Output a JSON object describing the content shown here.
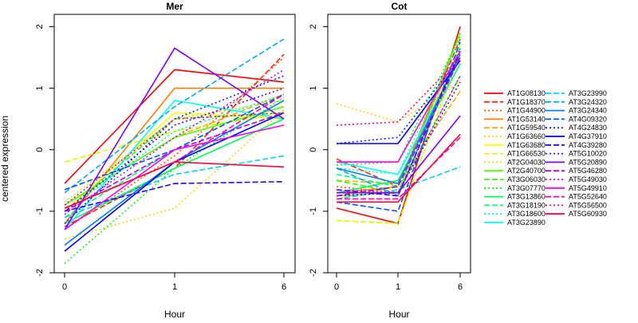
{
  "chart_data": {
    "type": "line",
    "ylabel": "centered expression",
    "x": [
      "0",
      "1",
      "6"
    ],
    "xlabel": "Hour",
    "ylim": [
      -2.0,
      2.2
    ],
    "yticks": [
      -2,
      -1,
      0,
      1,
      2
    ],
    "panels": [
      {
        "title": "Mer",
        "xlabel": "Hour",
        "series": [
          {
            "name": "AT1G08130",
            "color": "#ff0000",
            "dash": "solid",
            "values": [
              -0.55,
              1.3,
              1.1
            ]
          },
          {
            "name": "AT1G18370",
            "color": "#ff2a00",
            "dash": "dashed",
            "values": [
              -1.25,
              -0.3,
              1.55
            ]
          },
          {
            "name": "AT1G44900",
            "color": "#ff5500",
            "dash": "dotted",
            "values": [
              -1.3,
              -0.1,
              1.5
            ]
          },
          {
            "name": "AT1G53140",
            "color": "#ff8000",
            "dash": "solid",
            "values": [
              -1.2,
              1.0,
              1.0
            ]
          },
          {
            "name": "AT1G59540",
            "color": "#ffaa00",
            "dash": "dashed",
            "values": [
              -0.9,
              0.2,
              0.9
            ]
          },
          {
            "name": "AT1G63660",
            "color": "#ffd500",
            "dash": "dotted",
            "values": [
              -1.45,
              -0.95,
              0.65
            ]
          },
          {
            "name": "AT1G63680",
            "color": "#ffff00",
            "dash": "solid",
            "values": [
              -1.0,
              0.6,
              0.5
            ]
          },
          {
            "name": "AT1G66530",
            "color": "#d4ff00",
            "dash": "dashed",
            "values": [
              -0.2,
              0.3,
              0.6
            ]
          },
          {
            "name": "AT2G04030",
            "color": "#aaff00",
            "dash": "dotted",
            "values": [
              -0.85,
              0.5,
              0.8
            ]
          },
          {
            "name": "AT2G40700",
            "color": "#55ff00",
            "dash": "solid",
            "values": [
              -0.9,
              0.2,
              0.7
            ]
          },
          {
            "name": "AT3G06030",
            "color": "#2aff00",
            "dash": "dashed",
            "values": [
              -1.0,
              0.5,
              0.6
            ]
          },
          {
            "name": "AT3G07770",
            "color": "#00ff00",
            "dash": "dotted",
            "values": [
              -1.85,
              -0.3,
              0.85
            ]
          },
          {
            "name": "AT3G13860",
            "color": "#00ff55",
            "dash": "solid",
            "values": [
              -1.2,
              -0.3,
              0.5
            ]
          },
          {
            "name": "AT3G18190",
            "color": "#00ff80",
            "dash": "dashed",
            "values": [
              -1.1,
              0.0,
              0.4
            ]
          },
          {
            "name": "AT3G18600",
            "color": "#00ffaa",
            "dash": "dotted",
            "values": [
              -1.0,
              0.3,
              0.9
            ]
          },
          {
            "name": "AT3G23890",
            "color": "#00ffff",
            "dash": "solid",
            "values": [
              -1.3,
              0.8,
              0.5
            ]
          },
          {
            "name": "AT3G23990",
            "color": "#00d4ff",
            "dash": "dashed",
            "values": [
              -1.1,
              -0.4,
              -0.1
            ]
          },
          {
            "name": "AT3G24320",
            "color": "#00aaff",
            "dash": "dashed",
            "values": [
              -0.7,
              0.7,
              1.8
            ]
          },
          {
            "name": "AT3G24340",
            "color": "#0080ff",
            "dash": "solid",
            "values": [
              -1.55,
              -0.2,
              0.8
            ]
          },
          {
            "name": "AT4G09320",
            "color": "#0055ff",
            "dash": "dashed",
            "values": [
              -0.65,
              0.0,
              0.9
            ]
          },
          {
            "name": "AT4G24830",
            "color": "#002aff",
            "dash": "dotted",
            "values": [
              -1.2,
              0.5,
              1.2
            ]
          },
          {
            "name": "AT4G37910",
            "color": "#0000ff",
            "dash": "solid",
            "values": [
              -1.65,
              -0.2,
              0.6
            ]
          },
          {
            "name": "AT4G39280",
            "color": "#2a00ff",
            "dash": "dashed",
            "values": [
              -1.0,
              -0.55,
              -0.52
            ]
          },
          {
            "name": "AT5G10020",
            "color": "#5500ff",
            "dash": "dotted",
            "values": [
              -1.0,
              0.4,
              1.0
            ]
          },
          {
            "name": "AT5G20890",
            "color": "#8000ff",
            "dash": "solid",
            "values": [
              -1.3,
              1.65,
              0.5
            ]
          },
          {
            "name": "AT5G46280",
            "color": "#aa00ff",
            "dash": "dashed",
            "values": [
              -1.0,
              0.0,
              0.6
            ]
          },
          {
            "name": "AT5G49030",
            "color": "#d400ff",
            "dash": "dotted",
            "values": [
              -1.05,
              0.2,
              1.3
            ]
          },
          {
            "name": "AT5G49910",
            "color": "#ff00ff",
            "dash": "solid",
            "values": [
              -1.3,
              0.0,
              0.4
            ]
          },
          {
            "name": "AT5G52640",
            "color": "#ff00aa",
            "dash": "dashed",
            "values": [
              -0.95,
              -0.2,
              0.9
            ]
          },
          {
            "name": "AT5G56500",
            "color": "#ff0080",
            "dash": "dotted",
            "values": [
              -0.9,
              0.5,
              0.6
            ]
          },
          {
            "name": "AT5G60930",
            "color": "#ff0040",
            "dash": "solid",
            "values": [
              -0.95,
              -0.2,
              -0.28
            ]
          }
        ]
      },
      {
        "title": "Cot",
        "xlabel": "Hour",
        "series": [
          {
            "name": "AT1G08130",
            "color": "#ff0000",
            "dash": "solid",
            "values": [
              -0.95,
              -1.2,
              2.0
            ]
          },
          {
            "name": "AT1G18370",
            "color": "#ff2a00",
            "dash": "dashed",
            "values": [
              -0.15,
              -0.6,
              1.8
            ]
          },
          {
            "name": "AT1G44900",
            "color": "#ff5500",
            "dash": "dotted",
            "values": [
              -0.6,
              -0.7,
              1.5
            ]
          },
          {
            "name": "AT1G53140",
            "color": "#ff8000",
            "dash": "solid",
            "values": [
              -0.7,
              -0.6,
              1.9
            ]
          },
          {
            "name": "AT1G59540",
            "color": "#ffaa00",
            "dash": "dashed",
            "values": [
              -0.5,
              -0.55,
              0.95
            ]
          },
          {
            "name": "AT1G63660",
            "color": "#ffd500",
            "dash": "dotted",
            "values": [
              0.75,
              0.45,
              1.1
            ]
          },
          {
            "name": "AT1G63680",
            "color": "#ffff00",
            "dash": "solid",
            "values": [
              -0.8,
              -0.6,
              1.7
            ]
          },
          {
            "name": "AT1G66530",
            "color": "#d4ff00",
            "dash": "dashed",
            "values": [
              -1.15,
              -1.2,
              1.6
            ]
          },
          {
            "name": "AT2G04030",
            "color": "#aaff00",
            "dash": "dotted",
            "values": [
              -0.7,
              -0.5,
              1.5
            ]
          },
          {
            "name": "AT2G40700",
            "color": "#55ff00",
            "dash": "solid",
            "values": [
              -0.75,
              -0.7,
              1.9
            ]
          },
          {
            "name": "AT3G06030",
            "color": "#2aff00",
            "dash": "dashed",
            "values": [
              -0.5,
              -0.7,
              1.2
            ]
          },
          {
            "name": "AT3G07770",
            "color": "#00ff00",
            "dash": "dotted",
            "values": [
              -0.25,
              -0.2,
              1.85
            ]
          },
          {
            "name": "AT3G13860",
            "color": "#00ff55",
            "dash": "solid",
            "values": [
              -0.7,
              -0.5,
              1.4
            ]
          },
          {
            "name": "AT3G18190",
            "color": "#00ff80",
            "dash": "dashed",
            "values": [
              -0.4,
              -0.6,
              1.55
            ]
          },
          {
            "name": "AT3G18600",
            "color": "#00ffaa",
            "dash": "dotted",
            "values": [
              -0.3,
              -0.4,
              1.8
            ]
          },
          {
            "name": "AT3G23890",
            "color": "#00ffff",
            "dash": "solid",
            "values": [
              -0.2,
              -0.4,
              1.5
            ]
          },
          {
            "name": "AT3G23990",
            "color": "#00d4ff",
            "dash": "dashed",
            "values": [
              -0.8,
              -0.65,
              -0.28
            ]
          },
          {
            "name": "AT3G24320",
            "color": "#00aaff",
            "dash": "dashed",
            "values": [
              -0.3,
              -0.75,
              1.65
            ]
          },
          {
            "name": "AT3G24340",
            "color": "#0080ff",
            "dash": "solid",
            "values": [
              -0.3,
              -0.55,
              1.55
            ]
          },
          {
            "name": "AT4G09320",
            "color": "#0055ff",
            "dash": "dashed",
            "values": [
              -0.85,
              -1.0,
              1.75
            ]
          },
          {
            "name": "AT4G24830",
            "color": "#002aff",
            "dash": "dotted",
            "values": [
              0.1,
              0.2,
              1.5
            ]
          },
          {
            "name": "AT4G37910",
            "color": "#0000ff",
            "dash": "solid",
            "values": [
              0.1,
              0.1,
              1.45
            ]
          },
          {
            "name": "AT4G39280",
            "color": "#2a00ff",
            "dash": "dashed",
            "values": [
              -0.65,
              -0.75,
              1.6
            ]
          },
          {
            "name": "AT5G10020",
            "color": "#5500ff",
            "dash": "dotted",
            "values": [
              -0.75,
              -0.7,
              1.1
            ]
          },
          {
            "name": "AT5G20890",
            "color": "#8000ff",
            "dash": "solid",
            "values": [
              -0.7,
              -0.7,
              0.55
            ]
          },
          {
            "name": "AT5G46280",
            "color": "#aa00ff",
            "dash": "dashed",
            "values": [
              -0.75,
              -0.6,
              1.5
            ]
          },
          {
            "name": "AT5G49030",
            "color": "#d400ff",
            "dash": "dotted",
            "values": [
              -0.65,
              -0.7,
              1.2
            ]
          },
          {
            "name": "AT5G49910",
            "color": "#ff00ff",
            "dash": "solid",
            "values": [
              -0.2,
              -0.2,
              1.6
            ]
          },
          {
            "name": "AT5G52640",
            "color": "#ff00aa",
            "dash": "dashed",
            "values": [
              -0.8,
              -0.8,
              0.2
            ]
          },
          {
            "name": "AT5G56500",
            "color": "#ff0080",
            "dash": "dotted",
            "values": [
              0.4,
              0.45,
              1.5
            ]
          },
          {
            "name": "AT5G60930",
            "color": "#ff0040",
            "dash": "solid",
            "values": [
              -0.85,
              -0.85,
              0.25
            ]
          }
        ]
      }
    ]
  }
}
